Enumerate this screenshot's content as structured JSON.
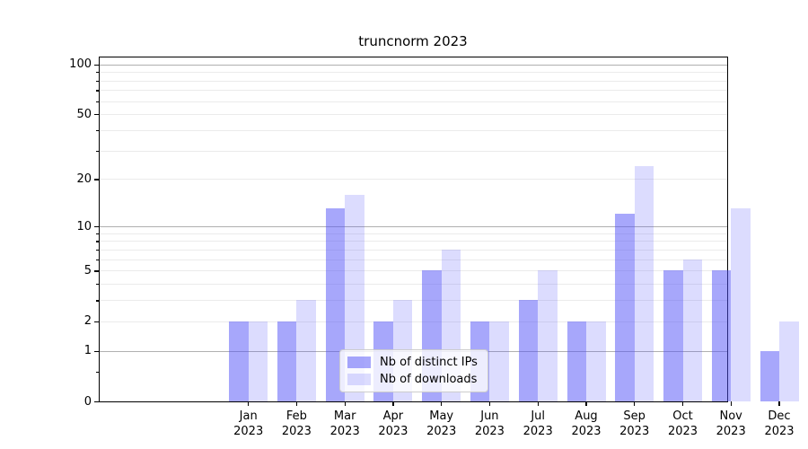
{
  "chart_data": {
    "type": "bar",
    "title": "truncnorm 2023",
    "categories": [
      {
        "month": "Jan",
        "year": "2023"
      },
      {
        "month": "Feb",
        "year": "2023"
      },
      {
        "month": "Mar",
        "year": "2023"
      },
      {
        "month": "Apr",
        "year": "2023"
      },
      {
        "month": "May",
        "year": "2023"
      },
      {
        "month": "Jun",
        "year": "2023"
      },
      {
        "month": "Jul",
        "year": "2023"
      },
      {
        "month": "Aug",
        "year": "2023"
      },
      {
        "month": "Sep",
        "year": "2023"
      },
      {
        "month": "Oct",
        "year": "2023"
      },
      {
        "month": "Nov",
        "year": "2023"
      },
      {
        "month": "Dec",
        "year": "2023"
      }
    ],
    "series": [
      {
        "name": "Nb of distinct IPs",
        "color": "rgba(80, 80, 248, 0.5)",
        "values": [
          2,
          2,
          13,
          2,
          5,
          2,
          3,
          2,
          12,
          5,
          5,
          1
        ]
      },
      {
        "name": "Nb of downloads",
        "color": "rgba(80, 80, 248, 0.2)",
        "values": [
          2,
          3,
          16,
          3,
          7,
          2,
          5,
          2,
          24,
          6,
          13,
          2
        ]
      }
    ],
    "yscale": "log1p",
    "ylim": [
      0,
      110
    ],
    "ytick_labels": [
      "0",
      "1",
      "2",
      "5",
      "10",
      "20",
      "50",
      "100"
    ],
    "ytick_values": [
      0,
      1,
      2,
      5,
      10,
      20,
      50,
      100
    ],
    "major_grid_values": [
      1,
      10,
      100
    ],
    "minor_grid_values": [
      2,
      3,
      4,
      5,
      6,
      7,
      8,
      9,
      20,
      30,
      40,
      50,
      60,
      70,
      80,
      90
    ],
    "minor_axis_tick_values": [
      0.5,
      2,
      3,
      4,
      5,
      6,
      7,
      8,
      9,
      20,
      30,
      40,
      50,
      60,
      70,
      80,
      90
    ],
    "grid": true,
    "legend_position": "lower center",
    "colors": {
      "major_grid": "#b0b0b0",
      "minor_grid": "#ebebeb",
      "axis": "#000000",
      "text": "#000000",
      "legend_border": "#cccccc"
    }
  }
}
